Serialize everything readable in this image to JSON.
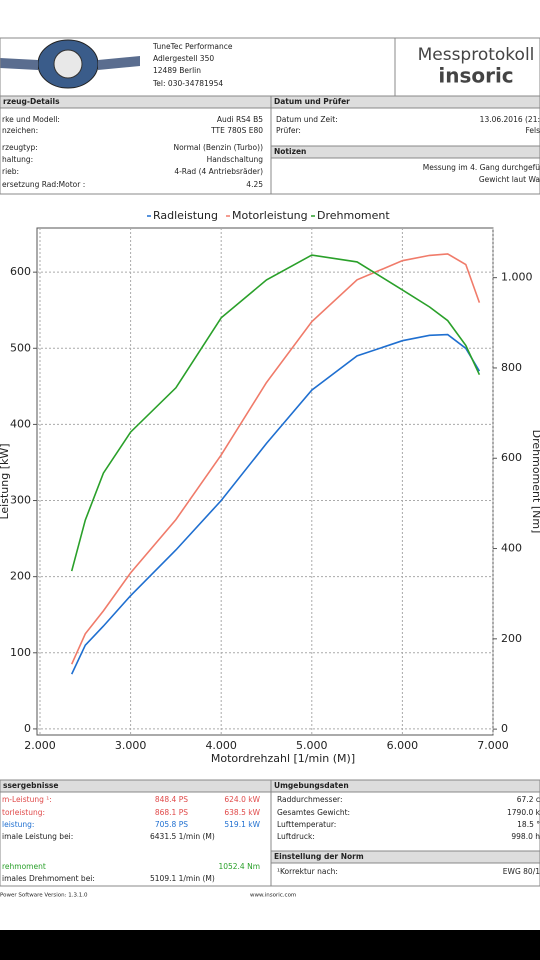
{
  "header": {
    "company": [
      "TuneTec Performance",
      "Adlergestell 350",
      "12489 Berlin",
      "Tel: 030-34781954"
    ],
    "title": "Messprotokoll",
    "brand": "insoric"
  },
  "vehicle": {
    "heading": "rzeug-Details",
    "rows": [
      [
        "rke und Modell:",
        "Audi RS4 B5"
      ],
      [
        "nzeichen:",
        "TTE 780S E80"
      ],
      [
        "rzeugtyp:",
        "Normal (Benzin (Turbo))"
      ],
      [
        "haltung:",
        "Handschaltung"
      ],
      [
        "rieb:",
        "4-Rad (4 Antriebsräder)"
      ],
      [
        "ersetzung Rad:Motor :",
        "4.25"
      ]
    ]
  },
  "date": {
    "heading": "Datum und Prüfer",
    "rows": [
      [
        "Datum und Zeit:",
        "13.06.2016 (21:"
      ],
      [
        "Prüfer:",
        "Fels"
      ]
    ]
  },
  "notes": {
    "heading": "Notizen",
    "lines": [
      "Messung im 4. Gang durchgefü",
      "Gewicht laut Wa"
    ]
  },
  "chart_data": {
    "type": "line",
    "xlabel": "Motordrehzahl [1/min (M)]",
    "ylabel": "Leistung [kW]",
    "y2label": "Drehmoment [Nm]",
    "x": [
      2350,
      2500,
      2700,
      3000,
      3500,
      4000,
      4500,
      5000,
      5500,
      6000,
      6300,
      6500,
      6700,
      6850
    ],
    "series": [
      {
        "name": "Radleistung",
        "color": "#1f6fd0",
        "values": [
          72,
          110,
          135,
          175,
          235,
          300,
          375,
          445,
          490,
          510,
          517,
          518,
          500,
          470
        ]
      },
      {
        "name": "Motorleistung",
        "color": "#f07b6a",
        "values": [
          85,
          125,
          155,
          205,
          275,
          360,
          455,
          535,
          590,
          615,
          622,
          624,
          610,
          560
        ]
      },
      {
        "name": "Drehmoment",
        "color": "#2aa02a",
        "axis": "y2",
        "values": [
          350,
          463,
          567,
          658,
          756,
          911,
          995,
          1050,
          1035,
          973,
          935,
          905,
          850,
          785
        ]
      }
    ],
    "xlim": [
      1967,
      7000
    ],
    "xticks": [
      {
        "value": 2000,
        "label": "2.000"
      },
      {
        "value": 3000,
        "label": "3.000"
      },
      {
        "value": 4000,
        "label": "4.000"
      },
      {
        "value": 5000,
        "label": "5.000"
      },
      {
        "value": 6000,
        "label": "6.000"
      },
      {
        "value": 7000,
        "label": "7.000"
      }
    ],
    "ylim": [
      -8,
      658
    ],
    "yticks": [
      0,
      100,
      200,
      300,
      400,
      500,
      600
    ],
    "y2lim": [
      -13,
      1110
    ],
    "y2ticks": [
      0,
      200,
      400,
      600,
      800,
      {
        "value": 1000,
        "label": "1.000"
      }
    ],
    "grid": true
  },
  "results": {
    "heading": "ssergebnisse",
    "rows": [
      {
        "cells": [
          "m-Leistung ¹:",
          "848.4 PS",
          "624.0 kW"
        ],
        "color": "#e04a4a"
      },
      {
        "cells": [
          "torleistung:",
          "868.1 PS",
          "638.5 kW"
        ],
        "color": "#e04a4a"
      },
      {
        "cells": [
          "leistung:",
          "705.8 PS",
          "519.1 kW"
        ],
        "color": "#1f6fd0"
      },
      {
        "cells": [
          "imale Leistung bei:",
          "6431.5 1/min (M)"
        ],
        "color": "#222222"
      },
      {
        "cells": [
          "rehmoment",
          "1052.4 Nm"
        ],
        "color": "#2aa02a"
      },
      {
        "cells": [
          "imales Drehmoment bei:",
          "5109.1 1/min (M)"
        ],
        "color": "#222222"
      }
    ]
  },
  "environment": {
    "heading": "Umgebungsdaten",
    "rows": [
      [
        "Raddurchmesser:",
        "67.2 c"
      ],
      [
        "Gesamtes Gewicht:",
        "1790.0 k"
      ],
      [
        "Lufttemperatur:",
        "18.5 °"
      ],
      [
        "Luftdruck:",
        "998.0 h"
      ]
    ]
  },
  "norm": {
    "heading": "Einstellung der Norm",
    "rows": [
      [
        "¹Korrektur nach:",
        "EWG 80/1"
      ]
    ]
  },
  "footer": {
    "version": "Power Software Version: 1.3.1.0",
    "url": "www.insoric.com"
  }
}
